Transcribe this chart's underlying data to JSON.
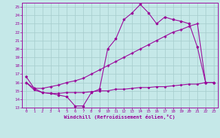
{
  "xlabel": "Windchill (Refroidissement éolien,°C)",
  "bg_color": "#c5e8e8",
  "grid_color": "#a8cece",
  "line_color": "#990099",
  "ylim": [
    13,
    25.5
  ],
  "xlim": [
    -0.5,
    23.5
  ],
  "yticks": [
    13,
    14,
    15,
    16,
    17,
    18,
    19,
    20,
    21,
    22,
    23,
    24,
    25
  ],
  "xticks": [
    0,
    1,
    2,
    3,
    4,
    5,
    6,
    7,
    8,
    9,
    10,
    11,
    12,
    13,
    14,
    15,
    16,
    17,
    18,
    19,
    20,
    21,
    22,
    23
  ],
  "line1_x": [
    0,
    1,
    2,
    3,
    4,
    5,
    6,
    7,
    8,
    9,
    10,
    11,
    12,
    13,
    14,
    15,
    16,
    17,
    18,
    19,
    20,
    21,
    22,
    23
  ],
  "line1_y": [
    16.7,
    15.3,
    14.8,
    14.7,
    14.5,
    14.3,
    13.2,
    13.2,
    14.8,
    15.2,
    20.0,
    21.2,
    23.5,
    24.3,
    25.3,
    24.3,
    23.0,
    23.8,
    23.5,
    23.3,
    23.0,
    20.2,
    16.0,
    16.0
  ],
  "line2_x": [
    0,
    1,
    2,
    3,
    4,
    5,
    6,
    7,
    8,
    9,
    10,
    11,
    12,
    13,
    14,
    15,
    16,
    17,
    18,
    19,
    20,
    21,
    22,
    23
  ],
  "line2_y": [
    16.0,
    15.3,
    15.3,
    15.5,
    15.7,
    16.0,
    16.2,
    16.5,
    17.0,
    17.5,
    18.0,
    18.5,
    19.0,
    19.5,
    20.0,
    20.5,
    21.0,
    21.5,
    22.0,
    22.3,
    22.7,
    23.0,
    16.0,
    16.0
  ],
  "line3_x": [
    0,
    1,
    2,
    3,
    4,
    5,
    6,
    7,
    8,
    9,
    10,
    11,
    12,
    13,
    14,
    15,
    16,
    17,
    18,
    19,
    20,
    21,
    22,
    23
  ],
  "line3_y": [
    16.0,
    15.1,
    14.8,
    14.7,
    14.7,
    14.8,
    14.8,
    14.8,
    14.9,
    15.0,
    15.0,
    15.2,
    15.2,
    15.3,
    15.4,
    15.4,
    15.5,
    15.5,
    15.6,
    15.7,
    15.8,
    15.8,
    16.0,
    16.0
  ]
}
